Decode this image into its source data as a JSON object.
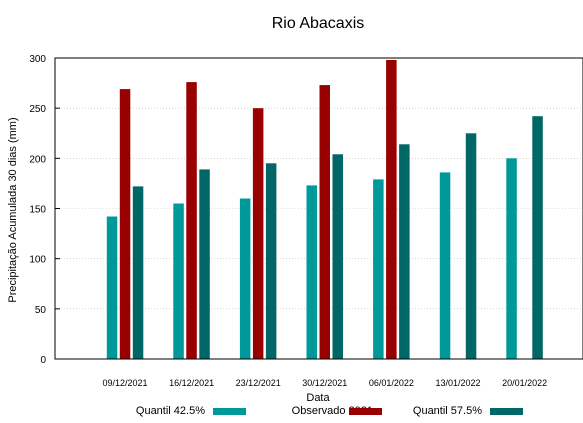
{
  "chart_data": {
    "type": "bar",
    "title": "Rio Abacaxis",
    "xlabel": "Data",
    "ylabel": "Precipitação Acumulada 30 dias (mm)",
    "ylim": [
      0,
      300
    ],
    "yticks": [
      0,
      50,
      100,
      150,
      200,
      250,
      300
    ],
    "grid": true,
    "legend_position": "bottom",
    "categories": [
      "09/12/2021",
      "16/12/2021",
      "23/12/2021",
      "30/12/2021",
      "06/01/2022",
      "13/01/2022",
      "20/01/2022"
    ],
    "series": [
      {
        "name": "Quantil 42.5%",
        "color": "#009999",
        "values": [
          142,
          155,
          160,
          173,
          179,
          186,
          200
        ]
      },
      {
        "name": "Observado 2021",
        "color": "#990000",
        "values": [
          269,
          276,
          250,
          273,
          298,
          null,
          null
        ]
      },
      {
        "name": "Quantil 57.5%",
        "color": "#006666",
        "values": [
          172,
          189,
          195,
          204,
          214,
          225,
          242
        ]
      }
    ]
  }
}
